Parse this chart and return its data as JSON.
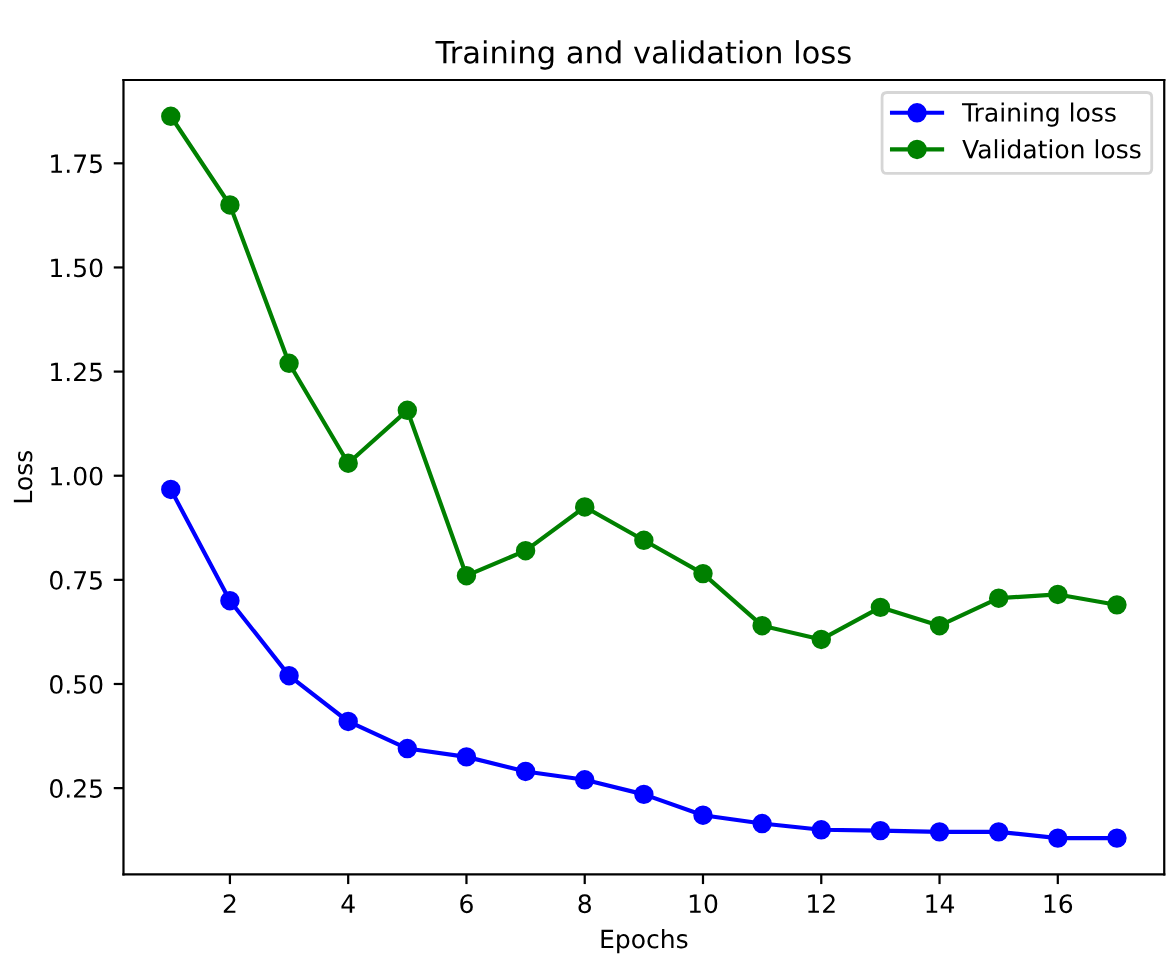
{
  "chart_data": {
    "type": "line",
    "title": "Training and validation loss",
    "xlabel": "Epochs",
    "ylabel": "Loss",
    "x": [
      1,
      2,
      3,
      4,
      5,
      6,
      7,
      8,
      9,
      10,
      11,
      12,
      13,
      14,
      15,
      16,
      17
    ],
    "series": [
      {
        "name": "Training loss",
        "color": "#0000ff",
        "values": [
          0.967,
          0.7,
          0.52,
          0.41,
          0.345,
          0.325,
          0.29,
          0.27,
          0.235,
          0.185,
          0.165,
          0.15,
          0.148,
          0.145,
          0.145,
          0.13,
          0.13
        ]
      },
      {
        "name": "Validation loss",
        "color": "#008000",
        "values": [
          1.863,
          1.65,
          1.27,
          1.03,
          1.157,
          0.76,
          0.82,
          0.925,
          0.845,
          0.765,
          0.64,
          0.607,
          0.684,
          0.64,
          0.706,
          0.715,
          0.69
        ]
      }
    ],
    "xlim": [
      0.2,
      17.8
    ],
    "ylim": [
      0.043,
      1.95
    ],
    "xticks": [
      2,
      4,
      6,
      8,
      10,
      12,
      14,
      16
    ],
    "yticks": [
      {
        "value": 0.25,
        "label": "0.25"
      },
      {
        "value": 0.5,
        "label": "0.50"
      },
      {
        "value": 0.75,
        "label": "0.75"
      },
      {
        "value": 1.0,
        "label": "1.00"
      },
      {
        "value": 1.25,
        "label": "1.25"
      },
      {
        "value": 1.5,
        "label": "1.50"
      },
      {
        "value": 1.75,
        "label": "1.75"
      }
    ],
    "legend": "top right",
    "marker": "circle",
    "line_style": "solid",
    "grid": false
  }
}
